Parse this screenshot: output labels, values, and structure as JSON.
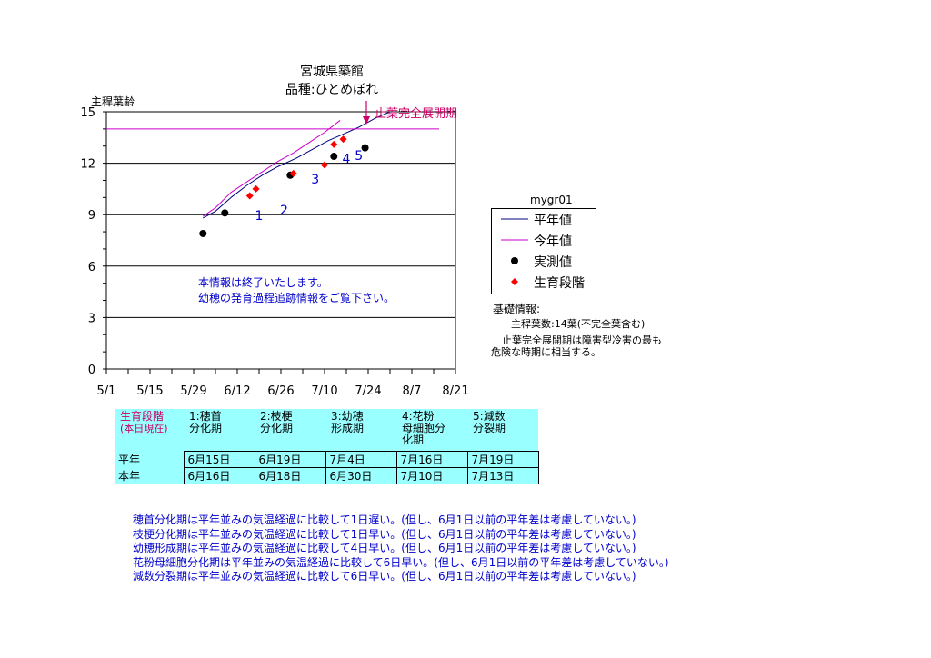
{
  "header": {
    "title": "宮城県築館",
    "subtitle": "品種:ひとめぼれ",
    "ylabel": "主稈葉齢",
    "annotation": "止葉完全展開期"
  },
  "chart_data": {
    "type": "line",
    "title": "宮城県築館",
    "ylabel": "主稈葉齢",
    "ylim": [
      0,
      15
    ],
    "yticks": [
      0,
      3,
      6,
      9,
      12,
      15
    ],
    "xlim": [
      "5/1",
      "8/21"
    ],
    "xticks": [
      "5/1",
      "5/15",
      "5/29",
      "6/12",
      "6/26",
      "7/10",
      "7/24",
      "8/7",
      "8/21"
    ],
    "grid": "horizontal",
    "flag_leaf_level": 14,
    "series": [
      {
        "name": "平年値",
        "color": "#000080",
        "points": [
          [
            "6/1",
            8.8
          ],
          [
            "6/5",
            9.2
          ],
          [
            "6/10",
            10.0
          ],
          [
            "6/15",
            10.7
          ],
          [
            "6/20",
            11.3
          ],
          [
            "6/25",
            11.8
          ],
          [
            "7/1",
            12.3
          ],
          [
            "7/6",
            12.8
          ],
          [
            "7/11",
            13.3
          ],
          [
            "7/16",
            13.7
          ],
          [
            "7/21",
            14.1
          ],
          [
            "7/26",
            14.6
          ],
          [
            "7/31",
            15.0
          ]
        ]
      },
      {
        "name": "今年値",
        "color": "#cc00cc",
        "points": [
          [
            "6/1",
            8.9
          ],
          [
            "6/5",
            9.4
          ],
          [
            "6/10",
            10.3
          ],
          [
            "6/15",
            10.9
          ],
          [
            "6/20",
            11.5
          ],
          [
            "6/25",
            12.1
          ],
          [
            "6/30",
            12.6
          ],
          [
            "7/5",
            13.2
          ],
          [
            "7/10",
            13.8
          ],
          [
            "7/15",
            14.5
          ]
        ]
      },
      {
        "name": "実測値",
        "color": "#000000",
        "marker": "circle",
        "points": [
          [
            "6/1",
            7.9
          ],
          [
            "6/8",
            9.1
          ],
          [
            "6/29",
            11.3
          ],
          [
            "7/13",
            12.4
          ],
          [
            "7/23",
            12.9
          ]
        ]
      },
      {
        "name": "生育段階",
        "color": "#ff0000",
        "marker": "diamond",
        "points": [
          [
            "6/16",
            10.1
          ],
          [
            "6/18",
            10.5
          ],
          [
            "6/30",
            11.4
          ],
          [
            "7/10",
            11.9
          ],
          [
            "7/13",
            13.1
          ],
          [
            "7/16",
            13.4
          ]
        ]
      }
    ],
    "stage_numbers": [
      {
        "label": "1",
        "x": "6/19",
        "y": 8.7
      },
      {
        "label": "2",
        "x": "6/27",
        "y": 9.0
      },
      {
        "label": "3",
        "x": "7/7",
        "y": 10.8
      },
      {
        "label": "4",
        "x": "7/17",
        "y": 12.0
      },
      {
        "label": "5",
        "x": "7/21",
        "y": 12.2
      }
    ]
  },
  "legend": {
    "title": "mygr01",
    "items": [
      "平年値",
      "今年値",
      "実測値",
      "生育段階"
    ]
  },
  "notice": {
    "line1": "本情報は終了いたします。",
    "line2": "幼穂の発育過程追跡情報をご覧下さい。"
  },
  "info": {
    "heading": "基礎情報:",
    "line1": "主稈葉数:14葉(不完全葉含む)",
    "line2": "止葉完全展開期は障害型冷害の最も",
    "line3": "危険な時期に相当する。"
  },
  "stage_table": {
    "corner_line1": "生育段階",
    "corner_line2": "(本日現在)",
    "headers": [
      [
        "1:穂首",
        "分化期",
        ""
      ],
      [
        "2:枝梗",
        "分化期",
        ""
      ],
      [
        "3:幼穂",
        "形成期",
        ""
      ],
      [
        "4:花粉",
        "母細胞分",
        "化期"
      ],
      [
        "5:減数",
        "分裂期",
        ""
      ]
    ],
    "rows": [
      {
        "label": "平年",
        "values": [
          "6月15日",
          "6月19日",
          "7月4日",
          "7月16日",
          "7月19日"
        ]
      },
      {
        "label": "本年",
        "values": [
          "6月16日",
          "6月18日",
          "6月30日",
          "7月10日",
          "7月13日"
        ]
      }
    ]
  },
  "summary": [
    "穂首分化期は平年並みの気温経過に比較して1日遅い。(但し、6月1日以前の平年差は考慮していない。)",
    "枝梗分化期は平年並みの気温経過に比較して1日早い。(但し、6月1日以前の平年差は考慮していない。)",
    "幼穂形成期は平年並みの気温経過に比較して4日早い。(但し、6月1日以前の平年差は考慮していない。)",
    "花粉母細胞分化期は平年並みの気温経過に比較して6日早い。(但し、6月1日以前の平年差は考慮していない。)",
    "減数分裂期は平年並みの気温経過に比較して6日早い。(但し、6月1日以前の平年差は考慮していない。)"
  ],
  "colors": {
    "normal_line": "#000080",
    "current_line": "#cc00cc",
    "measured": "#000000",
    "stage_marker": "#ff0000",
    "annotation": "#cc0066",
    "note_text": "#0000cc",
    "table_bg": "#99ffff"
  }
}
